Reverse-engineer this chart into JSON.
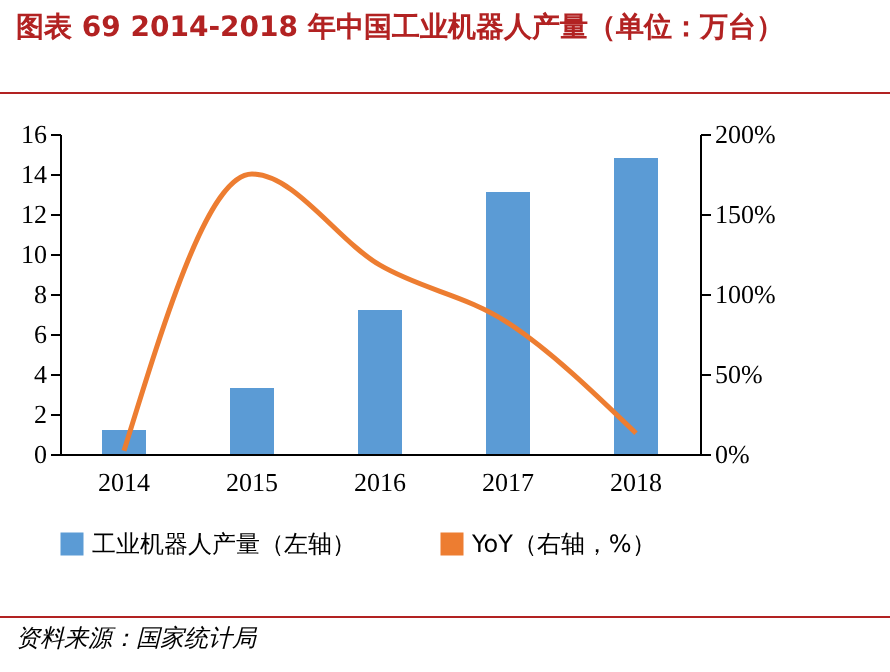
{
  "chart_data": {
    "type": "bar",
    "title": "图表 69   2014-2018 年中国工业机器人产量（单位：万台）",
    "categories": [
      "2014",
      "2015",
      "2016",
      "2017",
      "2018"
    ],
    "series": [
      {
        "name": "工业机器人产量（左轴）",
        "color": "#5b9bd5",
        "values": [
          1.2,
          3.3,
          7.2,
          13.1,
          14.8
        ]
      },
      {
        "name": "YoY（右轴，%）",
        "type": "line",
        "axis": "y2",
        "color": "#ed7d31",
        "values": [
          2,
          175,
          118,
          82,
          13
        ]
      }
    ],
    "ylim": [
      0,
      16
    ],
    "yticks": [
      0,
      2,
      4,
      6,
      8,
      10,
      12,
      14,
      16
    ],
    "y2lim": [
      0,
      200
    ],
    "y2ticks": [
      {
        "value": 0,
        "label": "0%"
      },
      {
        "value": 50,
        "label": "50%"
      },
      {
        "value": 100,
        "label": "100%"
      },
      {
        "value": 150,
        "label": "150%"
      },
      {
        "value": 200,
        "label": "200%"
      }
    ],
    "legend": "bottom",
    "grid": false,
    "annotations": [
      "资料来源：国家统计局"
    ]
  }
}
